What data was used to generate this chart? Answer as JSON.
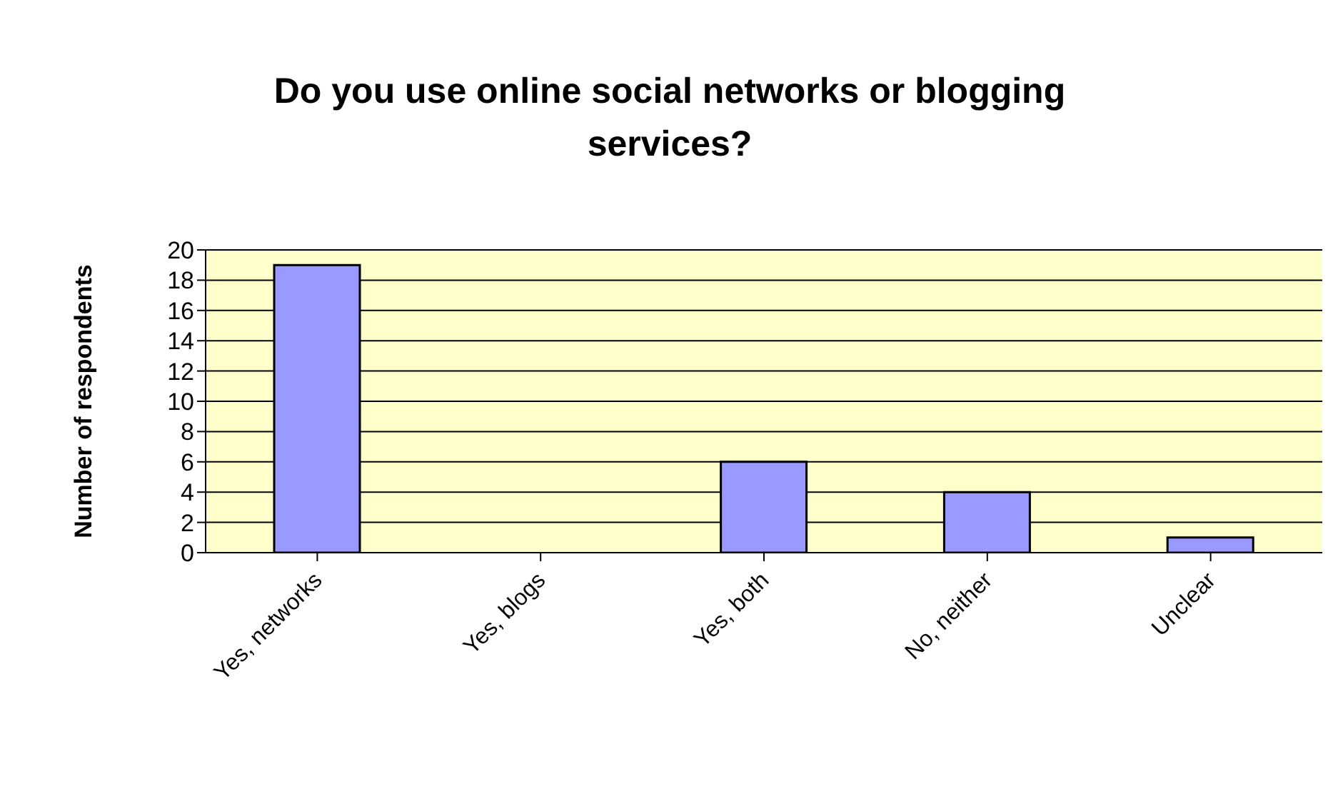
{
  "chart_data": {
    "type": "bar",
    "title": "Do you use online social networks or blogging services?",
    "ylabel": "Number of respondents",
    "categories": [
      "Yes, networks",
      "Yes, blogs",
      "Yes, both",
      "No, neither",
      "Unclear"
    ],
    "values": [
      19,
      0,
      6,
      4,
      1
    ],
    "color": "#9999ff",
    "ylim": [
      0,
      20
    ],
    "yticks": [
      0,
      2,
      4,
      6,
      8,
      10,
      12,
      14,
      16,
      18,
      20
    ],
    "grid": "y",
    "legend": false
  }
}
